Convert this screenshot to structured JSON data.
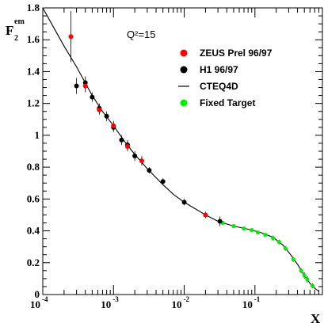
{
  "chart_data": {
    "type": "scatter",
    "xscale": "log",
    "xlim": [
      0.0001,
      0.9
    ],
    "ylim": [
      0,
      1.8
    ],
    "x_major_ticks": [
      0.0001,
      0.001,
      0.01,
      0.1
    ],
    "x_tick_labels": [
      {
        "base": "10",
        "exp": "-4"
      },
      {
        "base": "10",
        "exp": "-3"
      },
      {
        "base": "10",
        "exp": "-2"
      },
      {
        "base": "10",
        "exp": "-1"
      }
    ],
    "y_ticks": [
      0,
      0.2,
      0.4,
      0.6,
      0.8,
      1,
      1.2,
      1.4,
      1.6,
      1.8
    ],
    "y_tick_labels": [
      "0",
      "0.2",
      "0.4",
      "0.6",
      "0.8",
      "1",
      "1.2",
      "1.4",
      "1.6",
      "1.8"
    ],
    "xlabel": "X",
    "ylabel": {
      "base": "F",
      "sub": "2",
      "sup": "em"
    },
    "annotation": {
      "text": "Q²=15",
      "pos": "top-center"
    },
    "legend": {
      "position": "top-right"
    },
    "series": [
      {
        "name": "ZEUS Prel 96/97",
        "kind": "points",
        "color": "#ff0000",
        "points": [
          {
            "x": 0.00025,
            "y": 1.62,
            "err": 0.16
          },
          {
            "x": 0.0004,
            "y": 1.31,
            "err": 0.04
          },
          {
            "x": 0.00063,
            "y": 1.16,
            "err": 0.03
          },
          {
            "x": 0.001,
            "y": 1.06,
            "err": 0.03
          },
          {
            "x": 0.00158,
            "y": 0.93,
            "err": 0.03
          },
          {
            "x": 0.00251,
            "y": 0.84,
            "err": 0.03
          },
          {
            "x": 0.02,
            "y": 0.5,
            "err": 0.02
          }
        ]
      },
      {
        "name": "H1 96/97",
        "kind": "points",
        "color": "#000000",
        "points": [
          {
            "x": 0.0003,
            "y": 1.31,
            "err": 0.05
          },
          {
            "x": 0.0004,
            "y": 1.33,
            "err": 0.04
          },
          {
            "x": 0.0005,
            "y": 1.24,
            "err": 0.03
          },
          {
            "x": 0.00063,
            "y": 1.17,
            "err": 0.03
          },
          {
            "x": 0.0008,
            "y": 1.12,
            "err": 0.03
          },
          {
            "x": 0.001,
            "y": 1.05,
            "err": 0.03
          },
          {
            "x": 0.0013,
            "y": 0.97,
            "err": 0.03
          },
          {
            "x": 0.00158,
            "y": 0.94,
            "err": 0.03
          },
          {
            "x": 0.002,
            "y": 0.87,
            "err": 0.03
          },
          {
            "x": 0.0032,
            "y": 0.78,
            "err": 0.02
          },
          {
            "x": 0.005,
            "y": 0.71,
            "err": 0.02
          },
          {
            "x": 0.01,
            "y": 0.58,
            "err": 0.02
          },
          {
            "x": 0.032,
            "y": 0.46,
            "err": 0.03
          }
        ]
      },
      {
        "name": "CTEQ4D",
        "kind": "line",
        "color": "#000000",
        "points": [
          {
            "x": 0.0001,
            "y": 1.8
          },
          {
            "x": 0.00015,
            "y": 1.66
          },
          {
            "x": 0.0002,
            "y": 1.56
          },
          {
            "x": 0.0003,
            "y": 1.43
          },
          {
            "x": 0.0005,
            "y": 1.25
          },
          {
            "x": 0.0007,
            "y": 1.15
          },
          {
            "x": 0.001,
            "y": 1.06
          },
          {
            "x": 0.0015,
            "y": 0.95
          },
          {
            "x": 0.002,
            "y": 0.88
          },
          {
            "x": 0.003,
            "y": 0.79
          },
          {
            "x": 0.005,
            "y": 0.69
          },
          {
            "x": 0.007,
            "y": 0.63
          },
          {
            "x": 0.01,
            "y": 0.58
          },
          {
            "x": 0.02,
            "y": 0.5
          },
          {
            "x": 0.03,
            "y": 0.46
          },
          {
            "x": 0.05,
            "y": 0.43
          },
          {
            "x": 0.08,
            "y": 0.41
          },
          {
            "x": 0.12,
            "y": 0.39
          },
          {
            "x": 0.18,
            "y": 0.36
          },
          {
            "x": 0.25,
            "y": 0.31
          },
          {
            "x": 0.32,
            "y": 0.25
          },
          {
            "x": 0.4,
            "y": 0.19
          },
          {
            "x": 0.5,
            "y": 0.12
          },
          {
            "x": 0.6,
            "y": 0.07
          },
          {
            "x": 0.7,
            "y": 0.04
          },
          {
            "x": 0.8,
            "y": 0.02
          }
        ]
      },
      {
        "name": "Fixed Target",
        "kind": "points",
        "color": "#00ee00",
        "points": [
          {
            "x": 0.035,
            "y": 0.45,
            "err": 0.01
          },
          {
            "x": 0.05,
            "y": 0.43,
            "err": 0.01
          },
          {
            "x": 0.07,
            "y": 0.415,
            "err": 0.01
          },
          {
            "x": 0.09,
            "y": 0.405,
            "err": 0.01
          },
          {
            "x": 0.11,
            "y": 0.39,
            "err": 0.01
          },
          {
            "x": 0.14,
            "y": 0.375,
            "err": 0.01
          },
          {
            "x": 0.18,
            "y": 0.355,
            "err": 0.015
          },
          {
            "x": 0.22,
            "y": 0.33,
            "err": 0.015
          },
          {
            "x": 0.27,
            "y": 0.29,
            "err": 0.015
          },
          {
            "x": 0.35,
            "y": 0.22,
            "err": 0.015
          },
          {
            "x": 0.45,
            "y": 0.15,
            "err": 0.015
          },
          {
            "x": 0.5,
            "y": 0.12,
            "err": 0.02
          },
          {
            "x": 0.55,
            "y": 0.095,
            "err": 0.02
          },
          {
            "x": 0.65,
            "y": 0.055,
            "err": 0.015
          }
        ]
      }
    ]
  }
}
